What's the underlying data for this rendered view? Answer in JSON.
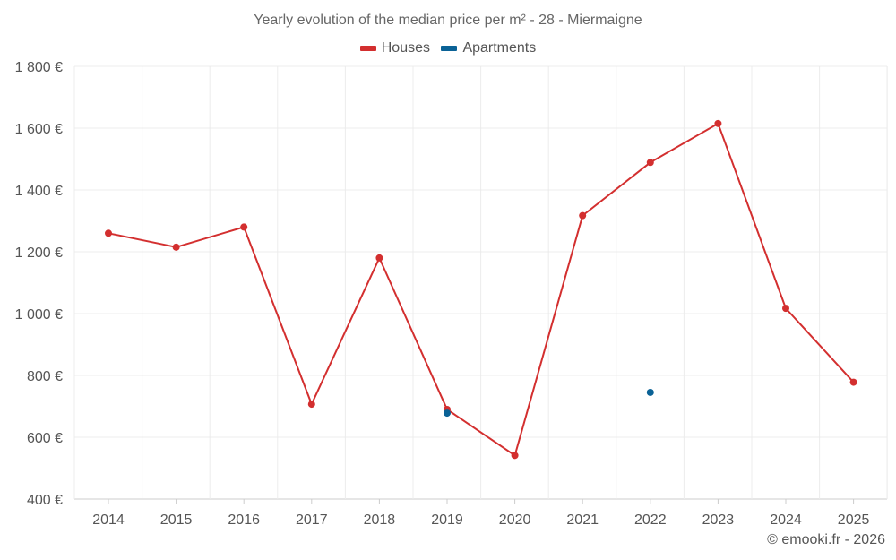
{
  "chart_data": {
    "type": "line",
    "title": "Yearly evolution of the median price per m² - 28 - Miermaigne",
    "xlabel": "",
    "ylabel": "",
    "categories": [
      "2014",
      "2015",
      "2016",
      "2017",
      "2018",
      "2019",
      "2020",
      "2021",
      "2022",
      "2023",
      "2024",
      "2025"
    ],
    "ylim": [
      400,
      1800
    ],
    "yticks": [
      400,
      600,
      800,
      1000,
      1200,
      1400,
      1600,
      1800
    ],
    "ytick_labels": [
      "400 €",
      "600 €",
      "800 €",
      "1 000 €",
      "1 200 €",
      "1 400 €",
      "1 600 €",
      "1 800 €"
    ],
    "legend_position": "top-center",
    "grid": true,
    "series": [
      {
        "name": "Houses",
        "color": "#d32f2f",
        "values": [
          1260,
          1215,
          1280,
          707,
          1180,
          690,
          541,
          1317,
          1489,
          1615,
          1017,
          778
        ]
      },
      {
        "name": "Apartments",
        "color": "#0a6296",
        "values": [
          null,
          null,
          null,
          null,
          null,
          678,
          null,
          null,
          745,
          null,
          null,
          null
        ]
      }
    ]
  },
  "credit": "© emooki.fr - 2026"
}
